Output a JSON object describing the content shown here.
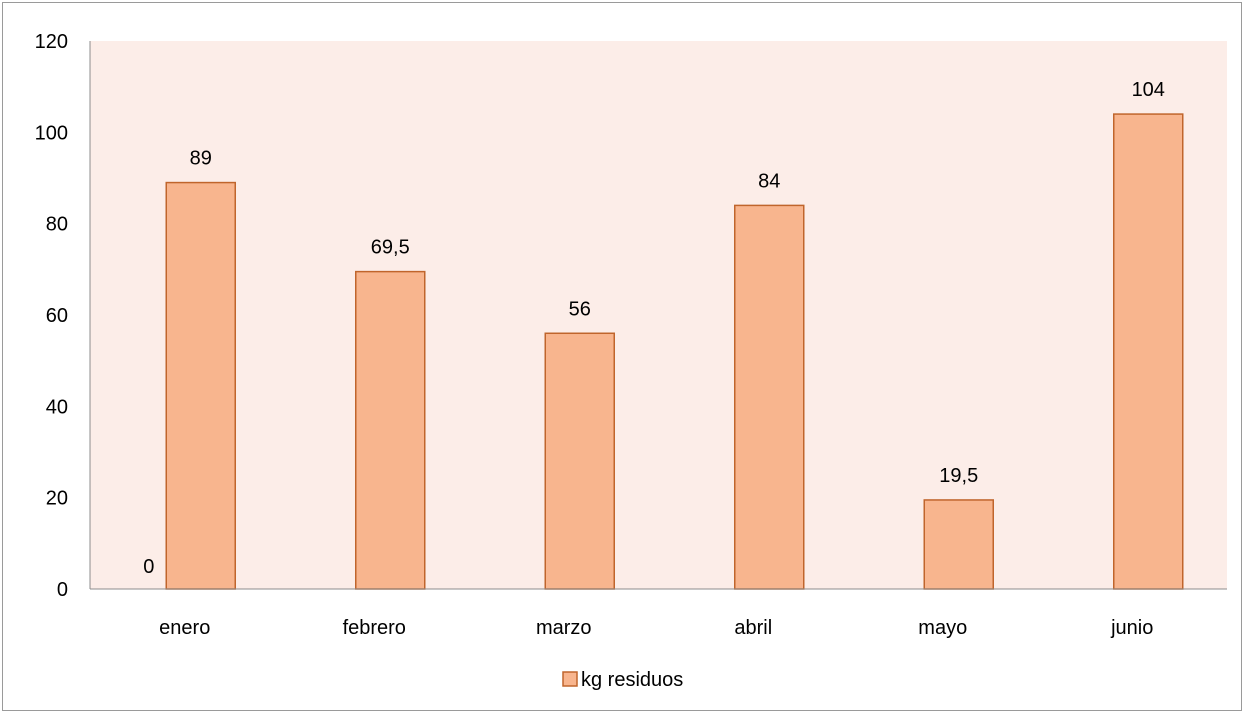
{
  "chart_data": {
    "type": "bar",
    "categories": [
      "enero",
      "febrero",
      "marzo",
      "abril",
      "mayo",
      "junio"
    ],
    "series": [
      {
        "name": "",
        "values": [
          0,
          null,
          null,
          null,
          null,
          null
        ],
        "value_labels": [
          "0",
          "",
          "",
          "",
          "",
          ""
        ]
      },
      {
        "name": "kg residuos",
        "values": [
          89,
          69.5,
          56,
          84,
          19.5,
          104
        ],
        "value_labels": [
          "89",
          "69,5",
          "56",
          "84",
          "19,5",
          "104"
        ]
      }
    ],
    "ylim": [
      0,
      120
    ],
    "yticks": [
      0,
      20,
      40,
      60,
      80,
      100,
      120
    ],
    "ytick_labels": [
      "0",
      "20",
      "40",
      "60",
      "80",
      "100",
      "120"
    ],
    "grid": false,
    "legend": {
      "position": "bottom",
      "entries": [
        "kg residuos"
      ]
    },
    "colors": {
      "plot_background": "#fcede8",
      "bar_fill": "#f8b58e",
      "bar_stroke": "#c0652c",
      "axis": "#8c8c8c"
    }
  }
}
